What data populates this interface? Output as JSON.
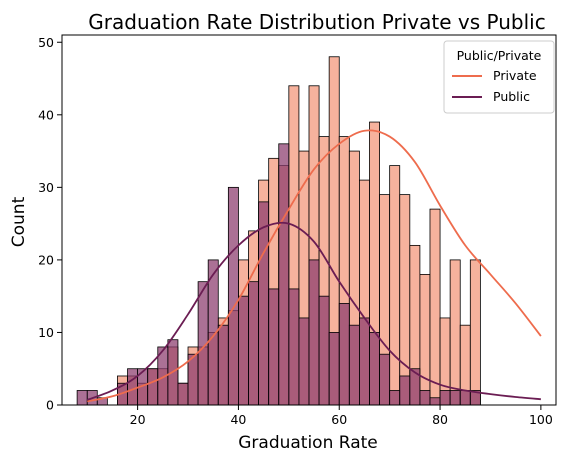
{
  "chart_data": {
    "type": "bar",
    "title": "Graduation Rate Distribution Private vs Public",
    "xlabel": "Graduation Rate",
    "ylabel": "Count",
    "xlim": [
      5,
      103
    ],
    "ylim": [
      0,
      51
    ],
    "xticks": [
      20,
      40,
      60,
      80,
      100
    ],
    "yticks": [
      0,
      10,
      20,
      30,
      40,
      50
    ],
    "bin_start": 10,
    "bin_width": 2,
    "legend": {
      "title": "Public/Private",
      "location": "top-right",
      "entries": [
        "Private",
        "Public"
      ]
    },
    "series": [
      {
        "name": "Private",
        "color": "#f4a48c",
        "line_color": "#ee6c4d",
        "counts": [
          0,
          0,
          0,
          4,
          4,
          3,
          5,
          5,
          8,
          3,
          8,
          8,
          10,
          12,
          13,
          20,
          24,
          31,
          34,
          33,
          44,
          35,
          44,
          37,
          48,
          37,
          35,
          31,
          39,
          29,
          33,
          29,
          22,
          18,
          27,
          12,
          20,
          11,
          20
        ]
      },
      {
        "name": "Public",
        "color": "#8a3a6c",
        "line_color": "#6b1d53",
        "counts": [
          2,
          1,
          0,
          3,
          5,
          5,
          5,
          8,
          9,
          3,
          7,
          17,
          20,
          11,
          30,
          15,
          17,
          28,
          16,
          36,
          16,
          12,
          20,
          15,
          10,
          14,
          11,
          12,
          10,
          7,
          2,
          4,
          5,
          2,
          1,
          2,
          2,
          2,
          2
        ],
        "extra_bins": [
          [
            8,
            2
          ]
        ]
      }
    ],
    "kde": {
      "x": [
        10,
        15,
        20,
        25,
        30,
        35,
        40,
        45,
        50,
        55,
        60,
        65,
        70,
        75,
        80,
        85,
        90,
        95,
        100
      ],
      "Private": [
        0.5,
        1.2,
        2.4,
        3.8,
        6,
        9.5,
        14.5,
        21,
        27,
        32.5,
        36,
        37.8,
        37,
        33.5,
        27.5,
        22,
        18,
        14,
        9.5
      ],
      "Public": [
        0.7,
        2,
        4,
        7.5,
        12.5,
        18,
        22,
        24.5,
        25,
        22.5,
        17,
        12,
        7.5,
        4.5,
        2.8,
        2,
        1.5,
        1.1,
        0.8
      ]
    }
  }
}
